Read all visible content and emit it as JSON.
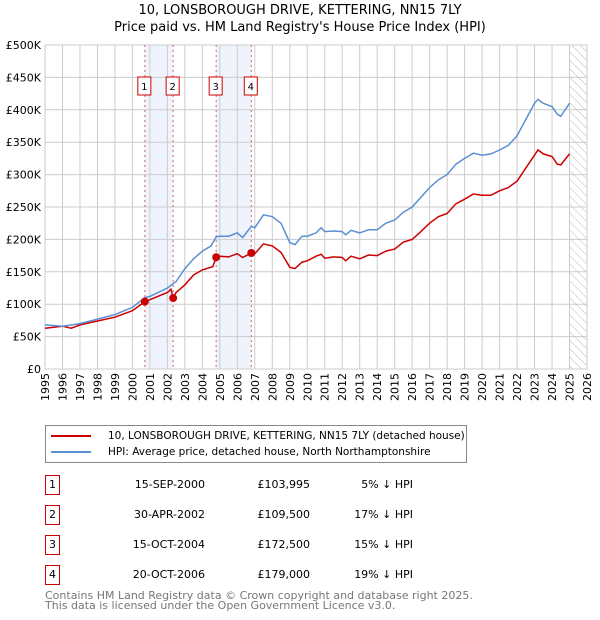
{
  "title": "10, LONSBOROUGH DRIVE, KETTERING, NN15 7LY",
  "subtitle": "Price paid vs. HM Land Registry's House Price Index (HPI)",
  "chart_data": {
    "type": "line",
    "title": "10, LONSBOROUGH DRIVE, KETTERING, NN15 7LY",
    "subtitle": "Price paid vs. HM Land Registry's House Price Index (HPI)",
    "xlim": [
      1995,
      2026
    ],
    "ylim": [
      0,
      500000
    ],
    "grid": true,
    "x_ticks": [
      "1995",
      "1996",
      "1997",
      "1998",
      "1999",
      "2000",
      "2001",
      "2002",
      "2003",
      "2004",
      "2005",
      "2006",
      "2007",
      "2008",
      "2009",
      "2010",
      "2011",
      "2012",
      "2013",
      "2014",
      "2015",
      "2016",
      "2017",
      "2018",
      "2019",
      "2020",
      "2021",
      "2022",
      "2023",
      "2024",
      "2025",
      "2026"
    ],
    "y_ticks": [
      {
        "v": 0,
        "label": "£0"
      },
      {
        "v": 50000,
        "label": "£50K"
      },
      {
        "v": 100000,
        "label": "£100K"
      },
      {
        "v": 150000,
        "label": "£150K"
      },
      {
        "v": 200000,
        "label": "£200K"
      },
      {
        "v": 250000,
        "label": "£250K"
      },
      {
        "v": 300000,
        "label": "£300K"
      },
      {
        "v": 350000,
        "label": "£350K"
      },
      {
        "v": 400000,
        "label": "£400K"
      },
      {
        "v": 450000,
        "label": "£450K"
      },
      {
        "v": 500000,
        "label": "£500K"
      }
    ],
    "forecast_from": 2025.0,
    "shaded_ranges": [
      [
        2000.71,
        2002.33
      ],
      [
        2004.79,
        2006.8
      ]
    ],
    "series": [
      {
        "name": "10, LONSBOROUGH DRIVE, KETTERING, NN15 7LY (detached house)",
        "color": "#cc0000",
        "x": [
          1995,
          1996,
          1996.5,
          1997,
          1998,
          1999,
          2000,
          2000.71,
          2001,
          2002,
          2002.2,
          2002.33,
          2002.5,
          2003,
          2003.5,
          2004,
          2004.6,
          2004.79,
          2005,
          2005.5,
          2006,
          2006.3,
          2006.8,
          2007,
          2007.5,
          2008,
          2008.5,
          2009,
          2009.3,
          2009.7,
          2010,
          2010.5,
          2010.8,
          2011,
          2011.5,
          2012,
          2012.2,
          2012.5,
          2013,
          2013.5,
          2014,
          2014.5,
          2015,
          2015.5,
          2016,
          2016.5,
          2017,
          2017.5,
          2018,
          2018.5,
          2019,
          2019.5,
          2020,
          2020.5,
          2021,
          2021.5,
          2022,
          2022.5,
          2023,
          2023.2,
          2023.5,
          2024,
          2024.3,
          2024.5,
          2025
        ],
        "y": [
          63000,
          66000,
          63000,
          68000,
          74000,
          80000,
          90000,
          103995,
          107000,
          118000,
          123000,
          109500,
          118000,
          130000,
          145000,
          153000,
          158000,
          172500,
          174000,
          173000,
          178000,
          172000,
          179000,
          178000,
          193000,
          190000,
          180000,
          157000,
          155000,
          165000,
          167000,
          174000,
          177000,
          171000,
          173000,
          172000,
          167000,
          174000,
          170000,
          176000,
          175000,
          182000,
          185000,
          196000,
          200000,
          212000,
          225000,
          235000,
          240000,
          255000,
          262000,
          270000,
          268000,
          268000,
          275000,
          280000,
          290000,
          310000,
          330000,
          338000,
          332000,
          328000,
          316000,
          315000,
          332000
        ]
      },
      {
        "name": "HPI: Average price, detached house, North Northamptonshire",
        "color": "#5b8fd4",
        "x": [
          1995,
          1996,
          1997,
          1998,
          1999,
          2000,
          2000.71,
          2001,
          2002,
          2002.5,
          2003,
          2003.5,
          2004,
          2004.5,
          2004.79,
          2005,
          2005.5,
          2006,
          2006.3,
          2006.8,
          2007,
          2007.5,
          2008,
          2008.5,
          2009,
          2009.3,
          2009.7,
          2010,
          2010.5,
          2010.8,
          2011,
          2011.5,
          2012,
          2012.2,
          2012.5,
          2013,
          2013.5,
          2014,
          2014.5,
          2015,
          2015.5,
          2016,
          2016.5,
          2017,
          2017.5,
          2018,
          2018.5,
          2019,
          2019.5,
          2020,
          2020.5,
          2021,
          2021.5,
          2022,
          2022.5,
          2023,
          2023.2,
          2023.5,
          2024,
          2024.3,
          2024.5,
          2025
        ],
        "y": [
          68000,
          66000,
          70000,
          77000,
          84000,
          95000,
          110000,
          112000,
          125000,
          135000,
          155000,
          170000,
          182000,
          190000,
          204000,
          205000,
          205000,
          210000,
          203000,
          220000,
          218000,
          238000,
          235000,
          225000,
          195000,
          192000,
          205000,
          205000,
          210000,
          218000,
          212000,
          213000,
          212000,
          207000,
          214000,
          210000,
          215000,
          215000,
          225000,
          230000,
          242000,
          250000,
          265000,
          280000,
          292000,
          300000,
          316000,
          325000,
          333000,
          330000,
          332000,
          338000,
          345000,
          360000,
          385000,
          410000,
          416000,
          410000,
          405000,
          393000,
          390000,
          410000
        ]
      }
    ],
    "sales": [
      {
        "num": "1",
        "x": 2000.71,
        "date": "15-SEP-2000",
        "price": "£103,995",
        "value": 103995,
        "hpi": "5% ↓ HPI"
      },
      {
        "num": "2",
        "x": 2002.33,
        "date": "30-APR-2002",
        "price": "£109,500",
        "value": 109500,
        "hpi": "17% ↓ HPI"
      },
      {
        "num": "3",
        "x": 2004.79,
        "date": "15-OCT-2004",
        "price": "£172,500",
        "value": 172500,
        "hpi": "15% ↓ HPI"
      },
      {
        "num": "4",
        "x": 2006.8,
        "date": "20-OCT-2006",
        "price": "£179,000",
        "value": 179000,
        "hpi": "19% ↓ HPI"
      }
    ]
  },
  "legend": {
    "red": "10, LONSBOROUGH DRIVE, KETTERING, NN15 7LY (detached house)",
    "blue": "HPI: Average price, detached house, North Northamptonshire"
  },
  "footer": {
    "line1": "Contains HM Land Registry data © Crown copyright and database right 2025.",
    "line2": "This data is licensed under the Open Government Licence v3.0."
  }
}
